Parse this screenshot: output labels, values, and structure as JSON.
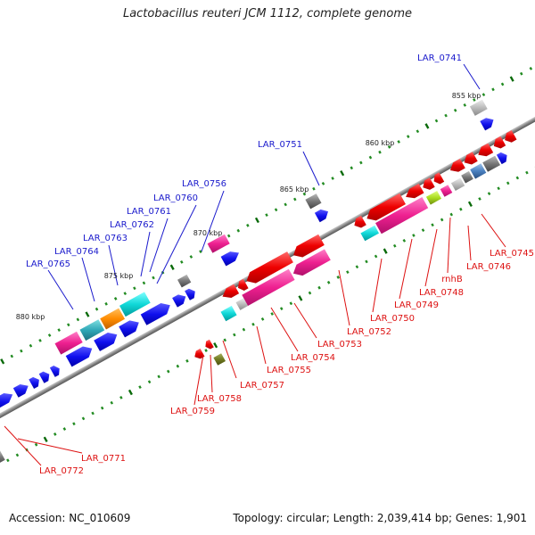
{
  "title": "Lactobacillus reuteri JCM 1112, complete genome",
  "footer": {
    "accession": "Accession: NC_010609",
    "topology": "Topology: circular; Length: 2,039,414 bp; Genes: 1,901"
  },
  "colors": {
    "backbone": "#808080",
    "top_strand_labels": "#1a1acc",
    "bottom_strand_labels": "#dd1111",
    "tick_minor": "#228b22",
    "tick_major": "#0a6a0a"
  },
  "kbp_markers": [
    "855 kbp",
    "860 kbp",
    "865 kbp",
    "870 kbp",
    "875 kbp",
    "880 kbp"
  ],
  "gene_labels_top": [
    "LAR_0741",
    "LAR_0751",
    "LAR_0756",
    "LAR_0760",
    "LAR_0761",
    "LAR_0762",
    "LAR_0763",
    "LAR_0764",
    "LAR_0765"
  ],
  "gene_labels_bottom": [
    "LAR_0745",
    "LAR_0746",
    "rnhB",
    "LAR_0748",
    "LAR_0749",
    "LAR_0750",
    "LAR_0752",
    "LAR_0753",
    "LAR_0754",
    "LAR_0755",
    "LAR_0757",
    "LAR_0758",
    "LAR_0759",
    "LAR_0771",
    "LAR_0772"
  ]
}
